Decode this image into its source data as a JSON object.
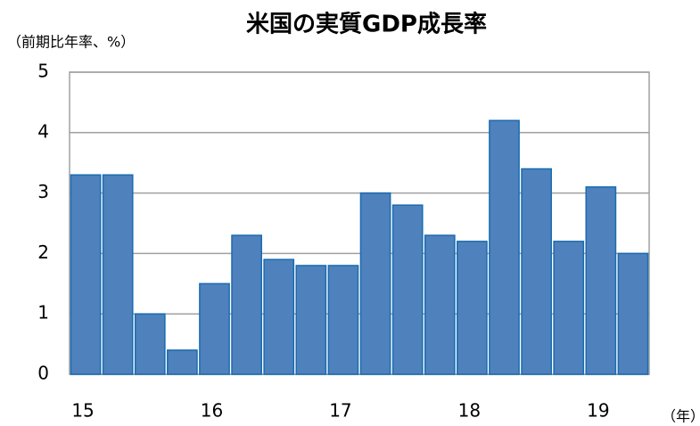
{
  "chart_data": {
    "type": "bar",
    "title": "米国の実質GDP成長率",
    "y_label": "（前期比年率、%）",
    "x_label": "（年）",
    "categories": [
      "15",
      null,
      null,
      null,
      "16",
      null,
      null,
      null,
      "17",
      null,
      null,
      null,
      "18",
      null,
      null,
      null,
      "19",
      null
    ],
    "values": [
      3.3,
      3.3,
      1.0,
      0.4,
      1.5,
      2.3,
      1.9,
      1.8,
      1.8,
      3.0,
      2.8,
      2.3,
      2.2,
      4.2,
      3.4,
      2.2,
      3.1,
      2.0
    ],
    "color": "#4f81bd",
    "ylim": [
      0,
      5
    ],
    "yticks": [
      0,
      1,
      2,
      3,
      4,
      5
    ],
    "grid": true
  }
}
